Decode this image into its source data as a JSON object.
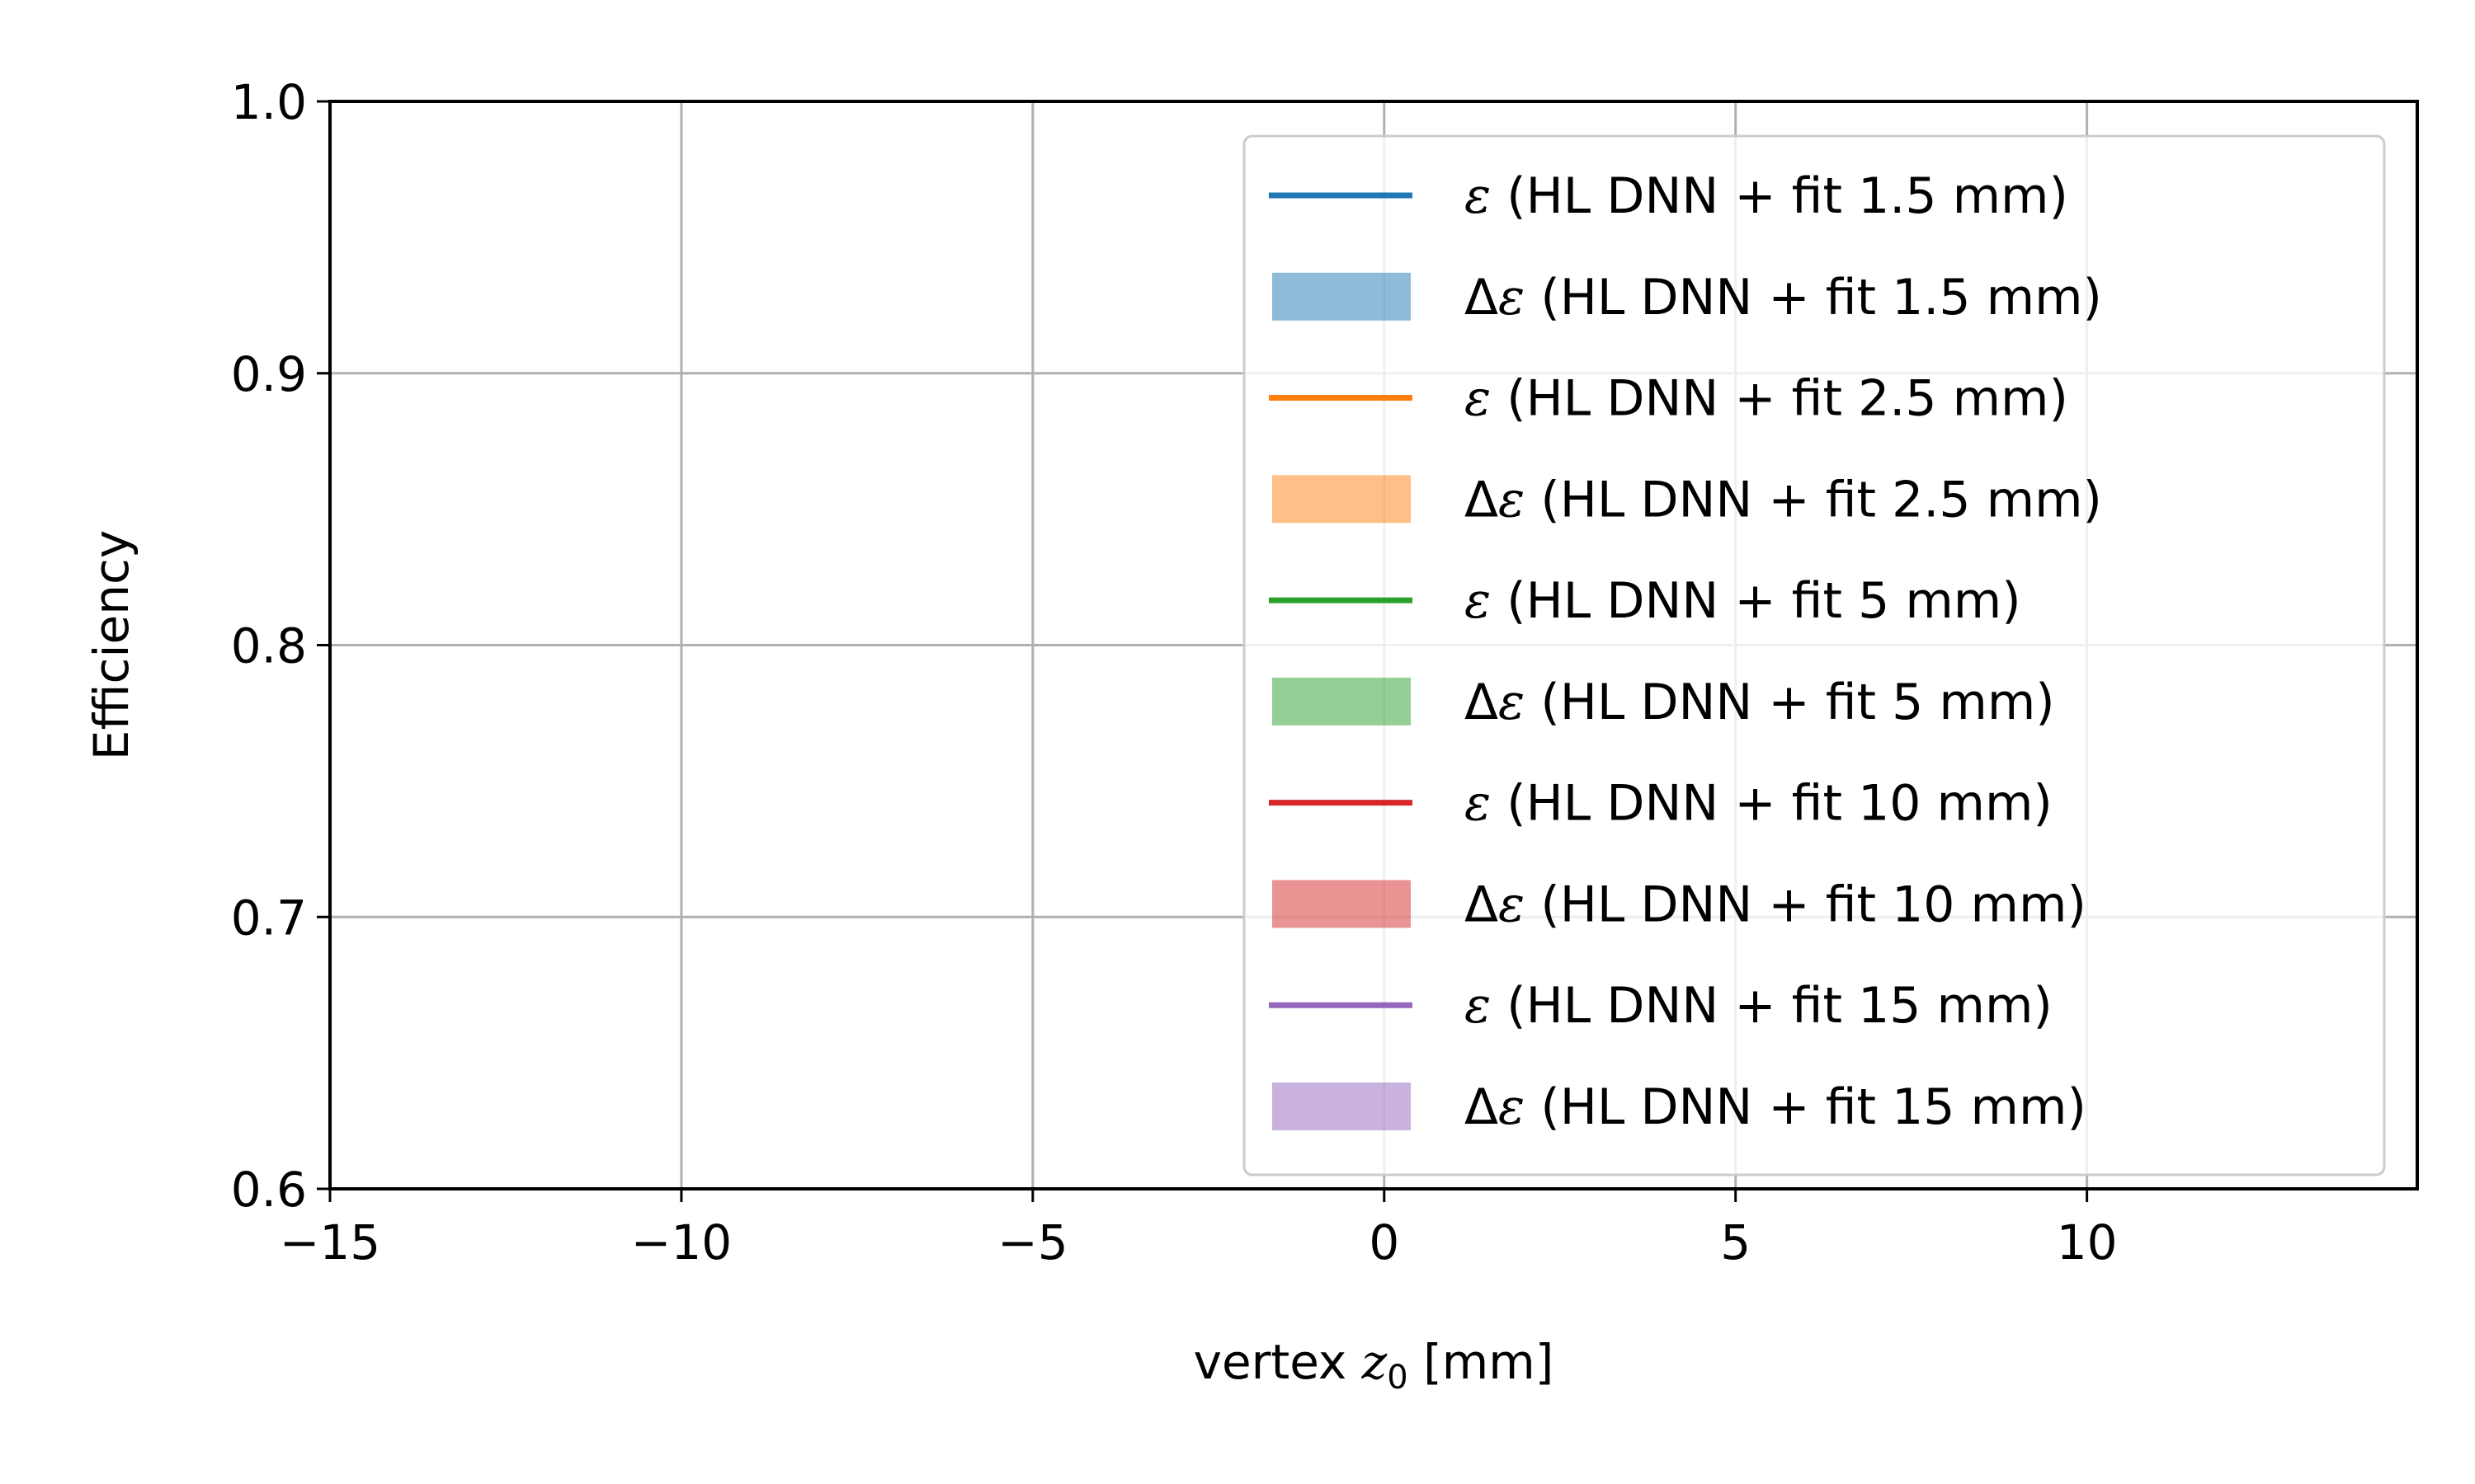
{
  "chart_data": {
    "type": "line",
    "title": "",
    "xlabel": {
      "prefix": "vertex ",
      "var": "z",
      "sub": "0",
      "suffix": " [mm]"
    },
    "ylabel": "Efficiency",
    "xlim": [
      -15,
      14.7
    ],
    "ylim": [
      0.6,
      1.0
    ],
    "xticks": [
      -15,
      -10,
      -5,
      0,
      5,
      10
    ],
    "xtick_labels": [
      "−15",
      "−10",
      "−5",
      "0",
      "5",
      "10"
    ],
    "yticks": [
      0.6,
      0.7,
      0.8,
      0.9,
      1.0
    ],
    "ytick_labels": [
      "0.6",
      "0.7",
      "0.8",
      "0.9",
      "1.0"
    ],
    "grid": true,
    "legend_position": "upper right",
    "legend": [
      {
        "kind": "line",
        "prefix": "",
        "symbol": "ε",
        "text": " (HL DNN + fit 1.5 mm)",
        "color": "#1f77b4"
      },
      {
        "kind": "band",
        "prefix": "Δ",
        "symbol": "ε",
        "text": " (HL DNN + fit 1.5 mm)",
        "color": "#1f77b4"
      },
      {
        "kind": "line",
        "prefix": "",
        "symbol": "ε",
        "text": " (HL DNN + fit 2.5 mm)",
        "color": "#ff7f0e"
      },
      {
        "kind": "band",
        "prefix": "Δ",
        "symbol": "ε",
        "text": " (HL DNN + fit 2.5 mm)",
        "color": "#ff7f0e"
      },
      {
        "kind": "line",
        "prefix": "",
        "symbol": "ε",
        "text": " (HL DNN + fit 5 mm)",
        "color": "#2ca02c"
      },
      {
        "kind": "band",
        "prefix": "Δ",
        "symbol": "ε",
        "text": " (HL DNN + fit 5 mm)",
        "color": "#2ca02c"
      },
      {
        "kind": "line",
        "prefix": "",
        "symbol": "ε",
        "text": " (HL DNN + fit 10 mm)",
        "color": "#d62728"
      },
      {
        "kind": "band",
        "prefix": "Δ",
        "symbol": "ε",
        "text": " (HL DNN + fit 10 mm)",
        "color": "#d62728"
      },
      {
        "kind": "line",
        "prefix": "",
        "symbol": "ε",
        "text": " (HL DNN + fit 15 mm)",
        "color": "#9467bd"
      },
      {
        "kind": "band",
        "prefix": "Δ",
        "symbol": "ε",
        "text": " (HL DNN + fit 15 mm)",
        "color": "#9467bd"
      }
    ],
    "series": []
  }
}
